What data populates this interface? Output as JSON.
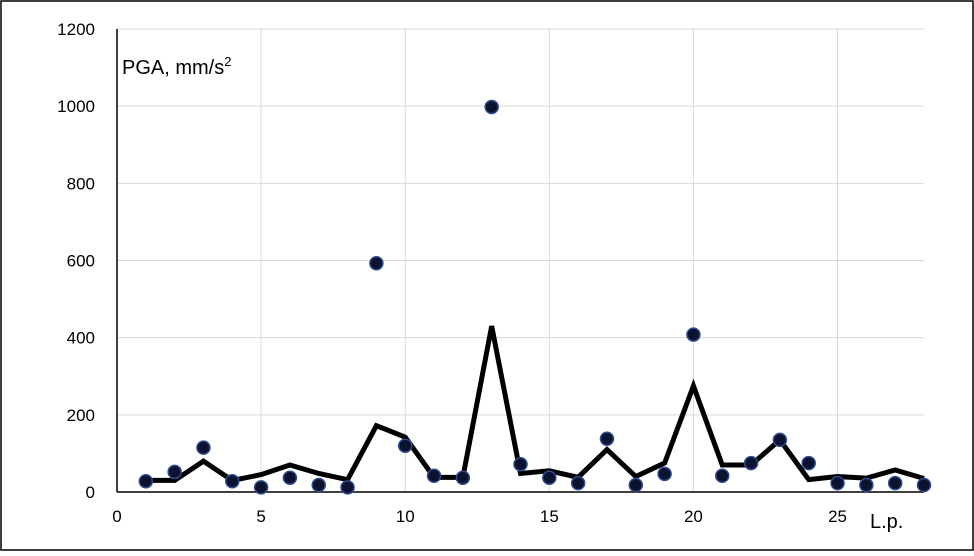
{
  "chart_data": {
    "type": "scatter",
    "title": "",
    "ylabel": "PGA, mm/s",
    "ylabel_sup": "2",
    "xlabel": "L.p.",
    "xlim": [
      0,
      28
    ],
    "ylim": [
      0,
      1200
    ],
    "x_ticks": [
      0,
      5,
      10,
      15,
      20,
      25
    ],
    "y_ticks": [
      0,
      200,
      400,
      600,
      800,
      1000,
      1200
    ],
    "grid": true,
    "legend": "none",
    "series": [
      {
        "kind": "scatter",
        "marker_color": "#0b1330",
        "marker_edge": "#2e4b8f",
        "x": [
          1,
          2,
          3,
          4,
          5,
          6,
          7,
          8,
          9,
          10,
          11,
          12,
          13,
          14,
          15,
          16,
          17,
          18,
          19,
          20,
          21,
          22,
          23,
          24,
          25,
          26,
          27,
          28
        ],
        "y": [
          28,
          52,
          115,
          28,
          12,
          37,
          18,
          12,
          593,
          120,
          42,
          37,
          998,
          72,
          37,
          23,
          138,
          18,
          47,
          408,
          42,
          75,
          135,
          75,
          23,
          18,
          23,
          18
        ]
      },
      {
        "kind": "line",
        "color": "#000000",
        "x": [
          1,
          2,
          3,
          4,
          5,
          6,
          7,
          8,
          9,
          10,
          11,
          12,
          13,
          14,
          15,
          16,
          17,
          18,
          19,
          20,
          21,
          22,
          23,
          24,
          25,
          26,
          27,
          28
        ],
        "y": [
          30,
          30,
          80,
          30,
          45,
          70,
          48,
          32,
          172,
          142,
          38,
          38,
          430,
          48,
          55,
          38,
          110,
          40,
          75,
          275,
          70,
          70,
          135,
          32,
          40,
          36,
          57,
          35
        ]
      }
    ]
  }
}
